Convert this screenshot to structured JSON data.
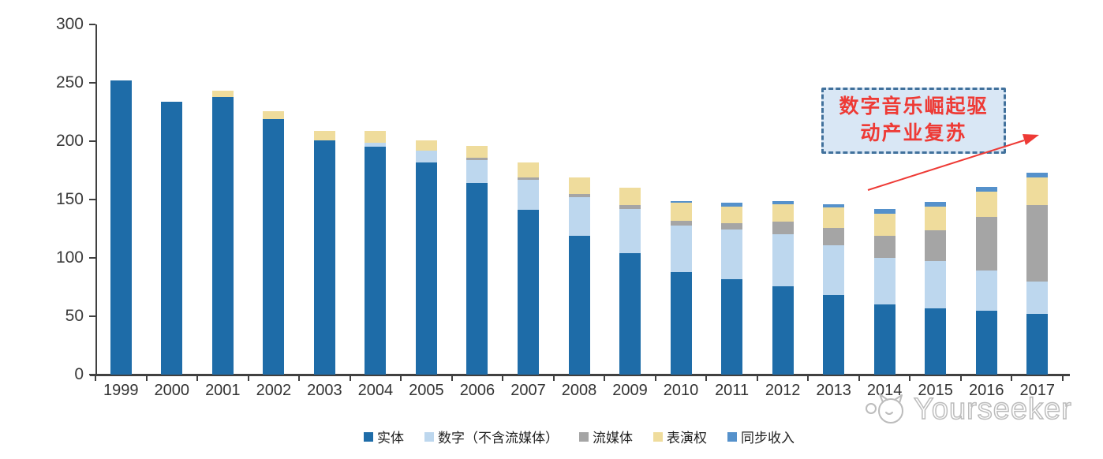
{
  "chart_data": {
    "type": "bar",
    "stacked": true,
    "title": "",
    "xlabel": "",
    "ylabel": "",
    "ylim": [
      0,
      300
    ],
    "yticks": [
      0,
      50,
      100,
      150,
      200,
      250,
      300
    ],
    "grid": false,
    "legend_position": "bottom",
    "categories": [
      "1999",
      "2000",
      "2001",
      "2002",
      "2003",
      "2004",
      "2005",
      "2006",
      "2007",
      "2008",
      "2009",
      "2010",
      "2011",
      "2012",
      "2013",
      "2014",
      "2015",
      "2016",
      "2017"
    ],
    "series": [
      {
        "name": "实体",
        "color": "#1E6CA8",
        "values": [
          252,
          234,
          238,
          219,
          201,
          195,
          182,
          164,
          141,
          119,
          104,
          88,
          82,
          76,
          68,
          60,
          57,
          55,
          52
        ]
      },
      {
        "name": "数字（不含流媒体）",
        "color": "#BDD7EE",
        "values": [
          0,
          0,
          0,
          0,
          0,
          4,
          10,
          20,
          26,
          33,
          38,
          40,
          42,
          44,
          43,
          40,
          40,
          34,
          28
        ]
      },
      {
        "name": "流媒体",
        "color": "#A5A5A5",
        "values": [
          0,
          0,
          0,
          0,
          0,
          0,
          0,
          2,
          2,
          3,
          3,
          4,
          6,
          11,
          15,
          19,
          27,
          46,
          65
        ]
      },
      {
        "name": "表演权",
        "color": "#EFDC9C",
        "values": [
          0,
          0,
          5,
          7,
          8,
          10,
          9,
          10,
          13,
          14,
          15,
          15,
          14,
          15,
          17,
          19,
          20,
          22,
          24
        ]
      },
      {
        "name": "同步收入",
        "color": "#5591CB",
        "values": [
          0,
          0,
          0,
          0,
          0,
          0,
          0,
          0,
          0,
          0,
          0,
          2,
          3,
          3,
          3,
          4,
          4,
          4,
          4
        ]
      }
    ]
  },
  "annotation": {
    "lines": [
      "数字音乐崛起驱",
      "动产业复苏"
    ],
    "text_color": "#EE3A35",
    "border_color": "#41719C",
    "fill_color": "#D9E7F5",
    "arrow_color": "#EE3A35"
  },
  "watermark": {
    "text": "Yourseeker"
  },
  "colors": {
    "axis": "#404040",
    "tick_label": "#3a3a3a"
  }
}
